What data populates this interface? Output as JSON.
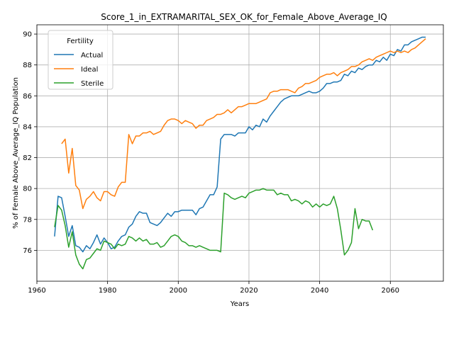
{
  "chart_data": {
    "type": "line",
    "title": "Score_1_in_EXTRAMARITAL_SEX_OK_for_Female_Above_Average_IQ",
    "xlabel": "Years",
    "ylabel": "% of Female Above_Average_IQ Population",
    "xlim": [
      1960,
      2075
    ],
    "ylim": [
      74.0,
      90.6
    ],
    "xticks": [
      1960,
      1980,
      2000,
      2020,
      2040,
      2060
    ],
    "yticks": [
      76,
      78,
      80,
      82,
      84,
      86,
      88,
      90
    ],
    "grid": true,
    "legend": {
      "title": "Fertility",
      "placement": "top-left"
    },
    "series": [
      {
        "name": "Actual",
        "color": "#1f77b4",
        "points": [
          [
            1965,
            76.9
          ],
          [
            1966,
            79.5
          ],
          [
            1967,
            79.4
          ],
          [
            1968,
            78.2
          ],
          [
            1969,
            76.9
          ],
          [
            1970,
            77.6
          ],
          [
            1971,
            76.3
          ],
          [
            1972,
            76.2
          ],
          [
            1973,
            75.9
          ],
          [
            1974,
            76.3
          ],
          [
            1975,
            76.1
          ],
          [
            1976,
            76.5
          ],
          [
            1977,
            77.0
          ],
          [
            1978,
            76.4
          ],
          [
            1979,
            76.8
          ],
          [
            1980,
            76.5
          ],
          [
            1981,
            76.1
          ],
          [
            1982,
            76.2
          ],
          [
            1983,
            76.6
          ],
          [
            1984,
            76.9
          ],
          [
            1985,
            77.0
          ],
          [
            1986,
            77.5
          ],
          [
            1987,
            77.7
          ],
          [
            1988,
            78.2
          ],
          [
            1989,
            78.5
          ],
          [
            1990,
            78.4
          ],
          [
            1991,
            78.4
          ],
          [
            1992,
            77.8
          ],
          [
            1993,
            77.7
          ],
          [
            1994,
            77.6
          ],
          [
            1995,
            77.8
          ],
          [
            1996,
            78.1
          ],
          [
            1997,
            78.4
          ],
          [
            1998,
            78.2
          ],
          [
            1999,
            78.5
          ],
          [
            2000,
            78.5
          ],
          [
            2001,
            78.6
          ],
          [
            2002,
            78.6
          ],
          [
            2003,
            78.6
          ],
          [
            2004,
            78.6
          ],
          [
            2005,
            78.3
          ],
          [
            2006,
            78.7
          ],
          [
            2007,
            78.8
          ],
          [
            2008,
            79.2
          ],
          [
            2009,
            79.6
          ],
          [
            2010,
            79.6
          ],
          [
            2011,
            80.1
          ],
          [
            2012,
            83.2
          ],
          [
            2013,
            83.5
          ],
          [
            2014,
            83.5
          ],
          [
            2015,
            83.5
          ],
          [
            2016,
            83.4
          ],
          [
            2017,
            83.6
          ],
          [
            2018,
            83.6
          ],
          [
            2019,
            83.6
          ],
          [
            2020,
            84.0
          ],
          [
            2021,
            83.8
          ],
          [
            2022,
            84.1
          ],
          [
            2023,
            84.0
          ],
          [
            2024,
            84.5
          ],
          [
            2025,
            84.3
          ],
          [
            2026,
            84.7
          ],
          [
            2027,
            85.0
          ],
          [
            2028,
            85.3
          ],
          [
            2029,
            85.6
          ],
          [
            2030,
            85.8
          ],
          [
            2031,
            85.9
          ],
          [
            2032,
            86.0
          ],
          [
            2033,
            86.0
          ],
          [
            2034,
            86.0
          ],
          [
            2035,
            86.1
          ],
          [
            2036,
            86.2
          ],
          [
            2037,
            86.3
          ],
          [
            2038,
            86.2
          ],
          [
            2039,
            86.2
          ],
          [
            2040,
            86.3
          ],
          [
            2041,
            86.5
          ],
          [
            2042,
            86.8
          ],
          [
            2043,
            86.8
          ],
          [
            2044,
            86.9
          ],
          [
            2045,
            86.9
          ],
          [
            2046,
            87.0
          ],
          [
            2047,
            87.4
          ],
          [
            2048,
            87.3
          ],
          [
            2049,
            87.6
          ],
          [
            2050,
            87.5
          ],
          [
            2051,
            87.8
          ],
          [
            2052,
            87.7
          ],
          [
            2053,
            87.9
          ],
          [
            2054,
            88.0
          ],
          [
            2055,
            88.0
          ],
          [
            2056,
            88.3
          ],
          [
            2057,
            88.2
          ],
          [
            2058,
            88.5
          ],
          [
            2059,
            88.3
          ],
          [
            2060,
            88.7
          ],
          [
            2061,
            88.6
          ],
          [
            2062,
            89.0
          ],
          [
            2063,
            88.9
          ],
          [
            2064,
            89.3
          ],
          [
            2065,
            89.3
          ],
          [
            2066,
            89.5
          ],
          [
            2067,
            89.6
          ],
          [
            2068,
            89.7
          ],
          [
            2069,
            89.8
          ],
          [
            2070,
            89.8
          ]
        ]
      },
      {
        "name": "Ideal",
        "color": "#ff7f0e",
        "points": [
          [
            1967,
            82.9
          ],
          [
            1968,
            83.2
          ],
          [
            1969,
            81.0
          ],
          [
            1970,
            82.6
          ],
          [
            1971,
            80.2
          ],
          [
            1972,
            79.9
          ],
          [
            1973,
            78.7
          ],
          [
            1974,
            79.3
          ],
          [
            1975,
            79.5
          ],
          [
            1976,
            79.8
          ],
          [
            1977,
            79.4
          ],
          [
            1978,
            79.2
          ],
          [
            1979,
            79.8
          ],
          [
            1980,
            79.8
          ],
          [
            1981,
            79.6
          ],
          [
            1982,
            79.5
          ],
          [
            1983,
            80.1
          ],
          [
            1984,
            80.4
          ],
          [
            1985,
            80.4
          ],
          [
            1986,
            83.5
          ],
          [
            1987,
            82.9
          ],
          [
            1988,
            83.4
          ],
          [
            1989,
            83.4
          ],
          [
            1990,
            83.6
          ],
          [
            1991,
            83.6
          ],
          [
            1992,
            83.7
          ],
          [
            1993,
            83.5
          ],
          [
            1994,
            83.6
          ],
          [
            1995,
            83.7
          ],
          [
            1996,
            84.1
          ],
          [
            1997,
            84.4
          ],
          [
            1998,
            84.5
          ],
          [
            1999,
            84.5
          ],
          [
            2000,
            84.4
          ],
          [
            2001,
            84.2
          ],
          [
            2002,
            84.4
          ],
          [
            2003,
            84.3
          ],
          [
            2004,
            84.2
          ],
          [
            2005,
            83.9
          ],
          [
            2006,
            84.1
          ],
          [
            2007,
            84.1
          ],
          [
            2008,
            84.4
          ],
          [
            2009,
            84.5
          ],
          [
            2010,
            84.6
          ],
          [
            2011,
            84.8
          ],
          [
            2012,
            84.8
          ],
          [
            2013,
            84.9
          ],
          [
            2014,
            85.1
          ],
          [
            2015,
            84.9
          ],
          [
            2016,
            85.1
          ],
          [
            2017,
            85.3
          ],
          [
            2018,
            85.3
          ],
          [
            2019,
            85.4
          ],
          [
            2020,
            85.5
          ],
          [
            2021,
            85.5
          ],
          [
            2022,
            85.5
          ],
          [
            2023,
            85.6
          ],
          [
            2024,
            85.7
          ],
          [
            2025,
            85.8
          ],
          [
            2026,
            86.2
          ],
          [
            2027,
            86.3
          ],
          [
            2028,
            86.3
          ],
          [
            2029,
            86.4
          ],
          [
            2030,
            86.4
          ],
          [
            2031,
            86.4
          ],
          [
            2032,
            86.3
          ],
          [
            2033,
            86.2
          ],
          [
            2034,
            86.5
          ],
          [
            2035,
            86.6
          ],
          [
            2036,
            86.8
          ],
          [
            2037,
            86.8
          ],
          [
            2038,
            86.9
          ],
          [
            2039,
            87.0
          ],
          [
            2040,
            87.2
          ],
          [
            2041,
            87.3
          ],
          [
            2042,
            87.4
          ],
          [
            2043,
            87.4
          ],
          [
            2044,
            87.5
          ],
          [
            2045,
            87.3
          ],
          [
            2046,
            87.5
          ],
          [
            2047,
            87.6
          ],
          [
            2048,
            87.7
          ],
          [
            2049,
            87.9
          ],
          [
            2050,
            87.9
          ],
          [
            2051,
            88.0
          ],
          [
            2052,
            88.2
          ],
          [
            2053,
            88.3
          ],
          [
            2054,
            88.4
          ],
          [
            2055,
            88.3
          ],
          [
            2056,
            88.5
          ],
          [
            2057,
            88.6
          ],
          [
            2058,
            88.7
          ],
          [
            2059,
            88.8
          ],
          [
            2060,
            88.9
          ],
          [
            2061,
            88.8
          ],
          [
            2062,
            88.9
          ],
          [
            2063,
            88.8
          ],
          [
            2064,
            88.9
          ],
          [
            2065,
            88.8
          ],
          [
            2066,
            89.0
          ],
          [
            2067,
            89.1
          ],
          [
            2068,
            89.3
          ],
          [
            2069,
            89.5
          ],
          [
            2070,
            89.7
          ]
        ]
      },
      {
        "name": "Sterile",
        "color": "#2ca02c",
        "points": [
          [
            1965,
            77.5
          ],
          [
            1966,
            78.9
          ],
          [
            1967,
            78.6
          ],
          [
            1968,
            77.6
          ],
          [
            1969,
            76.2
          ],
          [
            1970,
            77.2
          ],
          [
            1971,
            75.7
          ],
          [
            1972,
            75.1
          ],
          [
            1973,
            74.8
          ],
          [
            1974,
            75.4
          ],
          [
            1975,
            75.5
          ],
          [
            1976,
            75.8
          ],
          [
            1977,
            76.1
          ],
          [
            1978,
            76.0
          ],
          [
            1979,
            76.6
          ],
          [
            1980,
            76.5
          ],
          [
            1981,
            76.4
          ],
          [
            1982,
            76.1
          ],
          [
            1983,
            76.4
          ],
          [
            1984,
            76.3
          ],
          [
            1985,
            76.4
          ],
          [
            1986,
            76.9
          ],
          [
            1987,
            76.8
          ],
          [
            1988,
            76.6
          ],
          [
            1989,
            76.8
          ],
          [
            1990,
            76.6
          ],
          [
            1991,
            76.7
          ],
          [
            1992,
            76.4
          ],
          [
            1993,
            76.4
          ],
          [
            1994,
            76.5
          ],
          [
            1995,
            76.2
          ],
          [
            1996,
            76.3
          ],
          [
            1997,
            76.6
          ],
          [
            1998,
            76.9
          ],
          [
            1999,
            77.0
          ],
          [
            2000,
            76.9
          ],
          [
            2001,
            76.6
          ],
          [
            2002,
            76.5
          ],
          [
            2003,
            76.3
          ],
          [
            2004,
            76.3
          ],
          [
            2005,
            76.2
          ],
          [
            2006,
            76.3
          ],
          [
            2007,
            76.2
          ],
          [
            2008,
            76.1
          ],
          [
            2009,
            76.0
          ],
          [
            2010,
            76.0
          ],
          [
            2011,
            76.0
          ],
          [
            2012,
            75.9
          ],
          [
            2013,
            79.7
          ],
          [
            2014,
            79.6
          ],
          [
            2015,
            79.4
          ],
          [
            2016,
            79.3
          ],
          [
            2017,
            79.4
          ],
          [
            2018,
            79.5
          ],
          [
            2019,
            79.4
          ],
          [
            2020,
            79.7
          ],
          [
            2021,
            79.8
          ],
          [
            2022,
            79.9
          ],
          [
            2023,
            79.9
          ],
          [
            2024,
            80.0
          ],
          [
            2025,
            79.9
          ],
          [
            2026,
            79.9
          ],
          [
            2027,
            79.9
          ],
          [
            2028,
            79.6
          ],
          [
            2029,
            79.7
          ],
          [
            2030,
            79.6
          ],
          [
            2031,
            79.6
          ],
          [
            2032,
            79.2
          ],
          [
            2033,
            79.3
          ],
          [
            2034,
            79.2
          ],
          [
            2035,
            79.0
          ],
          [
            2036,
            79.2
          ],
          [
            2037,
            79.1
          ],
          [
            2038,
            78.8
          ],
          [
            2039,
            79.0
          ],
          [
            2040,
            78.8
          ],
          [
            2041,
            79.0
          ],
          [
            2042,
            78.9
          ],
          [
            2043,
            79.0
          ],
          [
            2044,
            79.5
          ],
          [
            2045,
            78.7
          ],
          [
            2046,
            77.3
          ],
          [
            2047,
            75.7
          ],
          [
            2048,
            76.0
          ],
          [
            2049,
            76.5
          ],
          [
            2050,
            78.7
          ],
          [
            2051,
            77.4
          ],
          [
            2052,
            78.0
          ],
          [
            2053,
            77.9
          ],
          [
            2054,
            77.9
          ],
          [
            2055,
            77.3
          ]
        ]
      }
    ]
  }
}
